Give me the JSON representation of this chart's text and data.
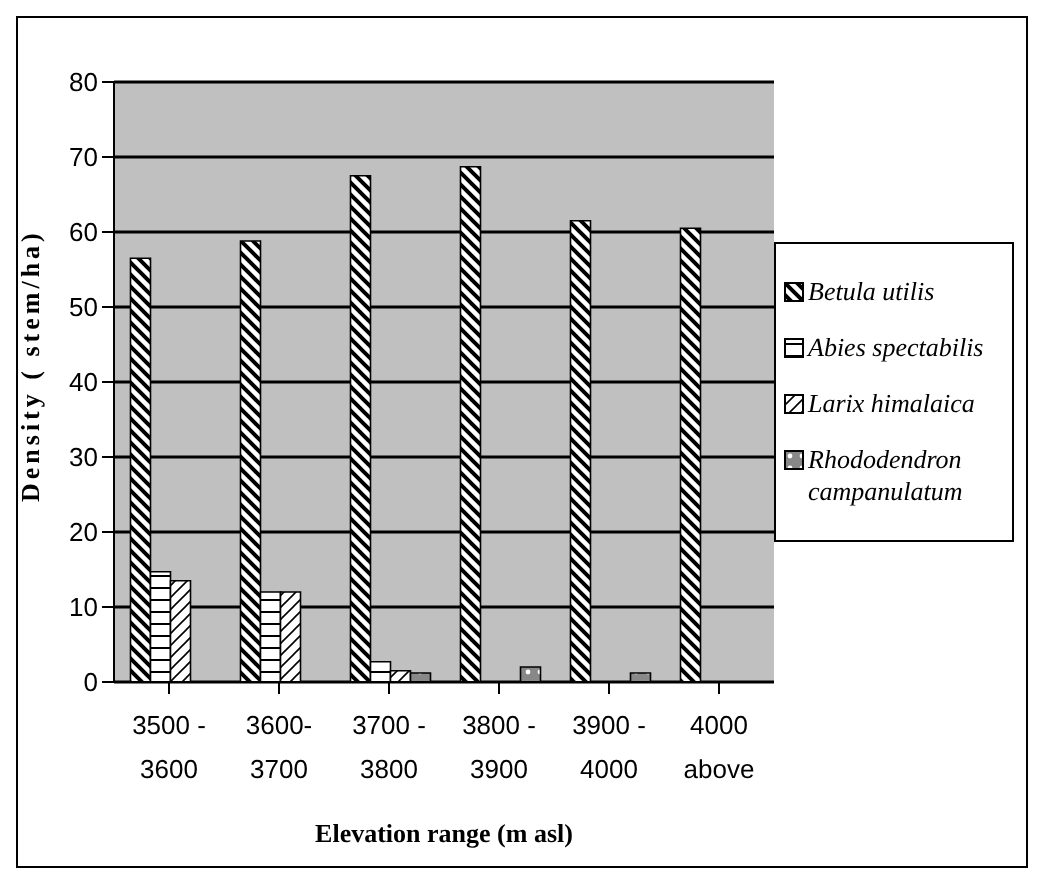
{
  "chart_data": {
    "type": "bar",
    "xlabel": "Elevation range (m asl)",
    "ylabel": "Density ( stem/ha)",
    "categories": [
      "3500 -\n3600",
      "3600-\n3700",
      "3700 -\n3800",
      "3800 -\n3900",
      "3900 -\n4000",
      "4000\nabove"
    ],
    "series": [
      {
        "name": "Betula utilis",
        "color": "#000000",
        "values": [
          56.5,
          58.8,
          67.5,
          68.7,
          61.5,
          60.5
        ]
      },
      {
        "name": "Abies spectabilis",
        "color": "#000000",
        "values": [
          14.7,
          12,
          2.7,
          0,
          0,
          0
        ]
      },
      {
        "name": "Larix himalaica",
        "color": "#000000",
        "values": [
          13.5,
          12,
          1.5,
          0,
          0,
          0
        ]
      },
      {
        "name": "Rhododendron campanulatum",
        "color": "#000000",
        "values": [
          0,
          0,
          1.2,
          2,
          1.2,
          0
        ]
      }
    ],
    "ylim": [
      0,
      80
    ],
    "yticks": [
      0,
      10,
      20,
      30,
      40,
      50,
      60,
      70,
      80
    ],
    "grid": "y",
    "legend": "right"
  }
}
